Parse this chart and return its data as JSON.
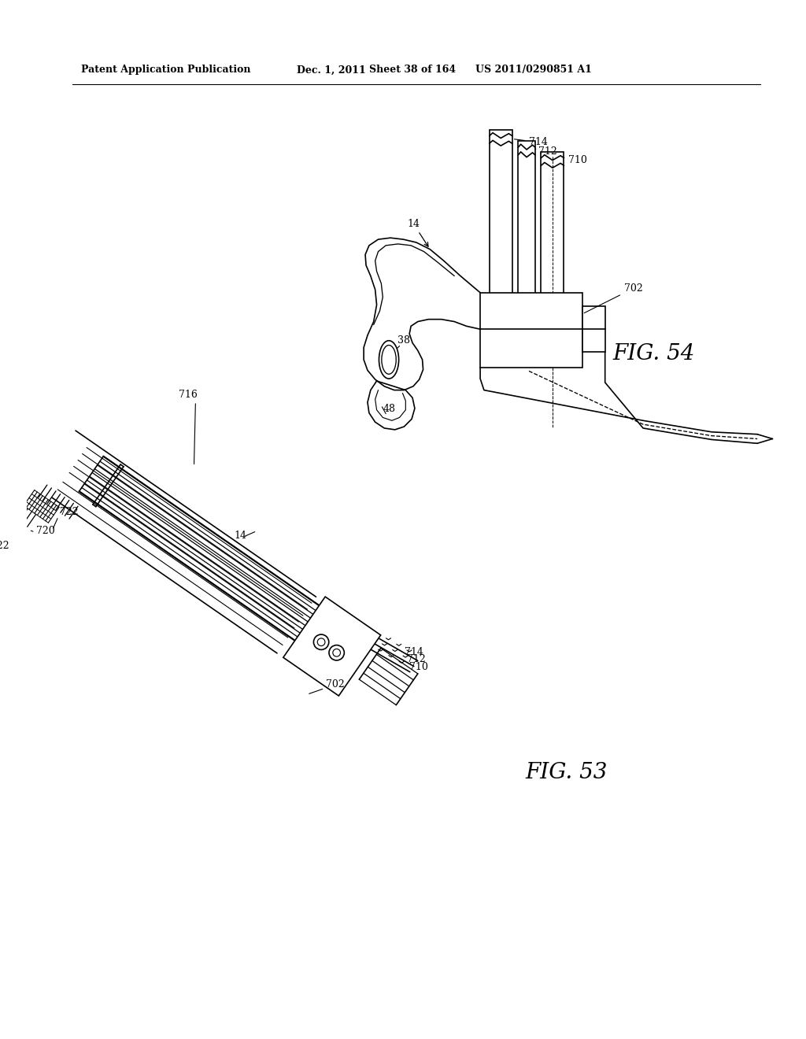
{
  "background_color": "#ffffff",
  "header_text": "Patent Application Publication",
  "header_date": "Dec. 1, 2011",
  "header_sheet": "Sheet 38 of 164",
  "header_patent": "US 2011/0290851 A1",
  "fig54_label": "FIG. 54",
  "fig53_label": "FIG. 53",
  "line_color": "#000000",
  "line_width": 1.2
}
